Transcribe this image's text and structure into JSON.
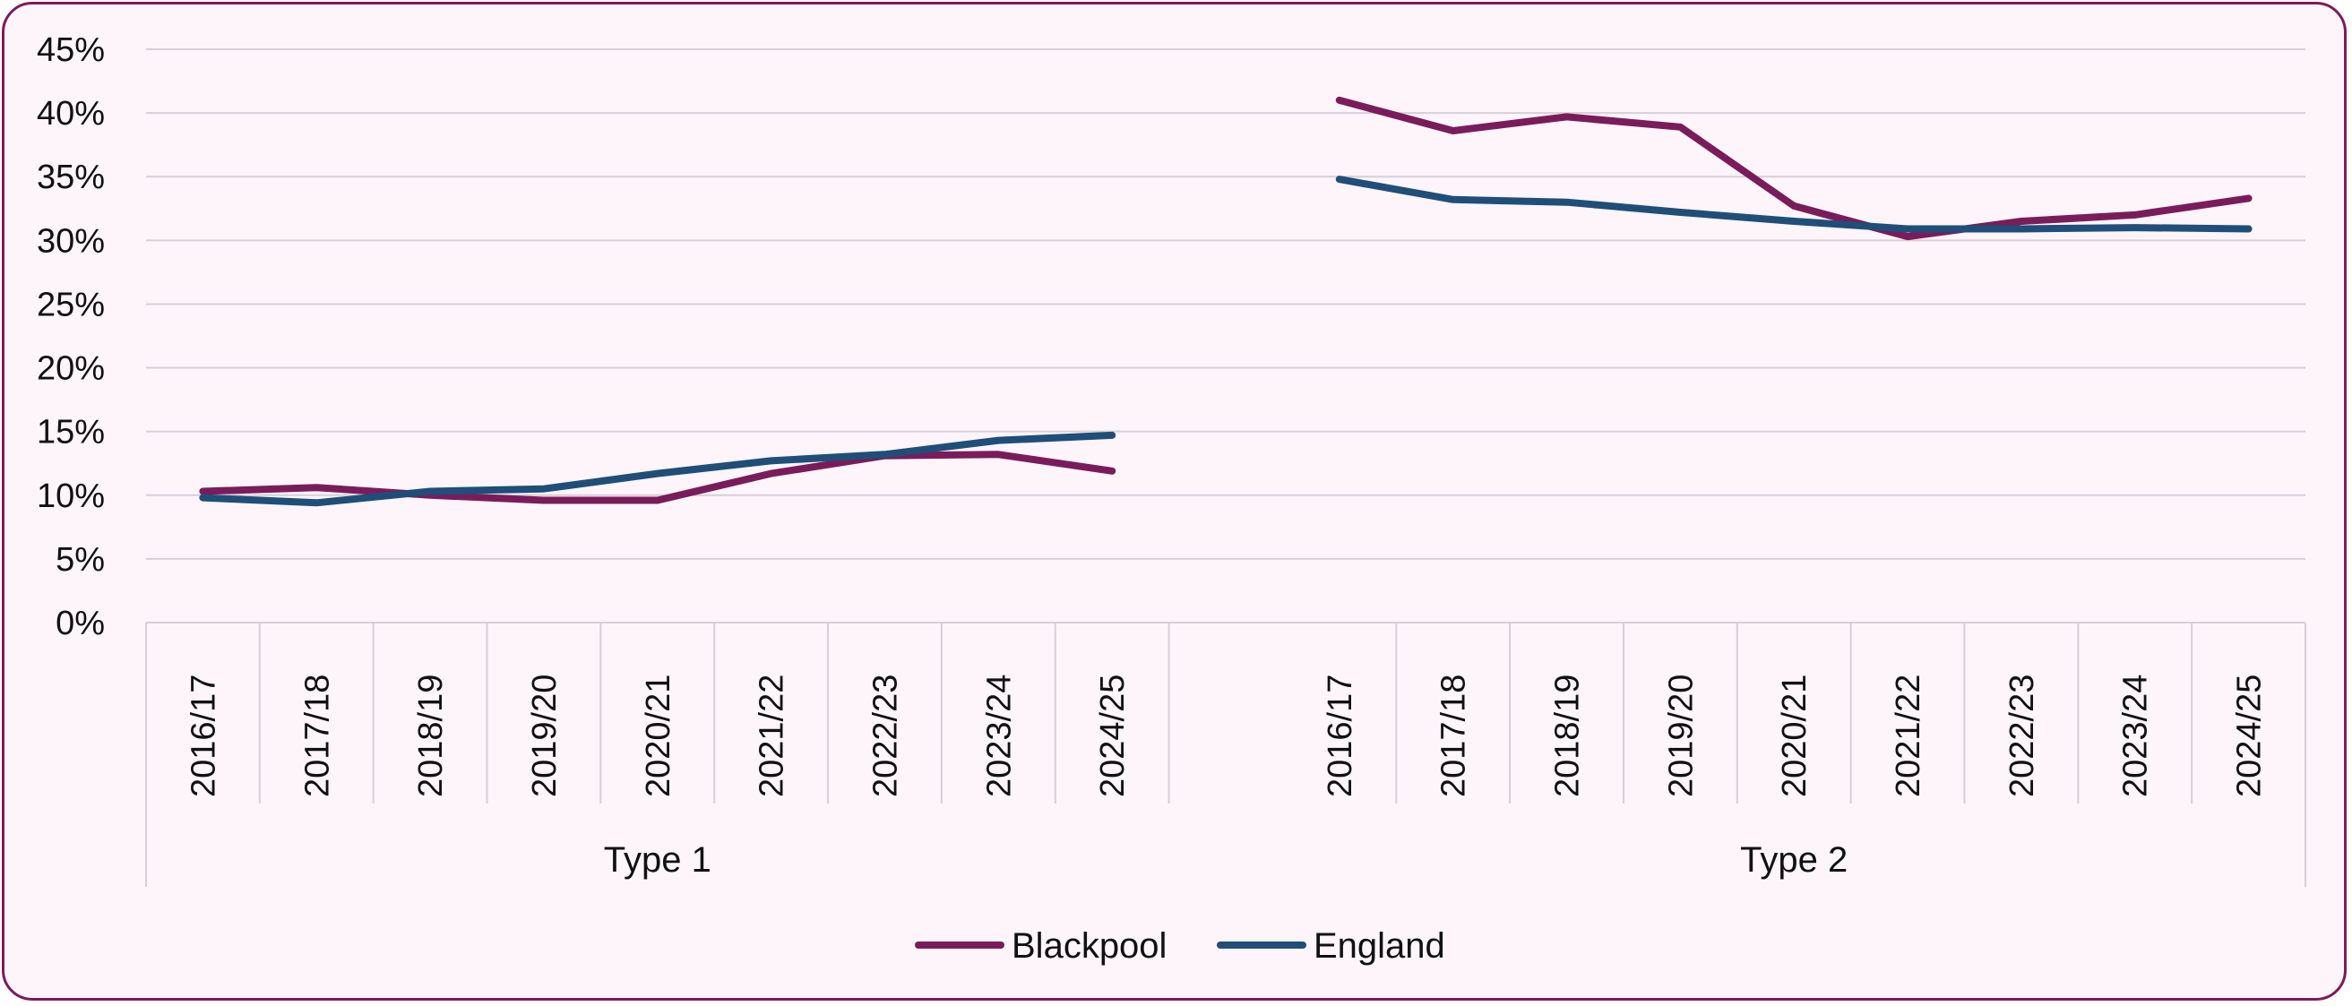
{
  "chart_data": {
    "type": "line",
    "title": "",
    "xlabel": "",
    "ylabel": "",
    "ylim": [
      0,
      45
    ],
    "y_ticks": [
      "0%",
      "5%",
      "10%",
      "15%",
      "20%",
      "25%",
      "30%",
      "35%",
      "40%",
      "45%"
    ],
    "grid": "horizontal",
    "legend_position": "bottom",
    "groups": [
      {
        "name": "Type 1",
        "categories": [
          "2016/17",
          "2017/18",
          "2018/19",
          "2019/20",
          "2020/21",
          "2021/22",
          "2022/23",
          "2023/24",
          "2024/25"
        ]
      },
      {
        "name": "Type 2",
        "categories": [
          "2016/17",
          "2017/18",
          "2018/19",
          "2019/20",
          "2020/21",
          "2021/22",
          "2022/23",
          "2023/24",
          "2024/25"
        ]
      }
    ],
    "series": [
      {
        "name": "Blackpool",
        "color": "#7a1c5c",
        "values": {
          "Type 1": [
            10.3,
            10.6,
            10.0,
            9.6,
            9.6,
            11.7,
            13.1,
            13.2,
            11.9
          ],
          "Type 2": [
            41.0,
            38.6,
            39.7,
            38.9,
            32.7,
            30.3,
            31.5,
            32.0,
            33.3
          ]
        }
      },
      {
        "name": "England",
        "color": "#1f4e79",
        "values": {
          "Type 1": [
            9.8,
            9.4,
            10.3,
            10.5,
            11.7,
            12.7,
            13.2,
            14.3,
            14.7
          ],
          "Type 2": [
            34.8,
            33.2,
            33.0,
            32.2,
            31.5,
            30.9,
            30.9,
            31.0,
            30.9
          ]
        }
      }
    ]
  }
}
